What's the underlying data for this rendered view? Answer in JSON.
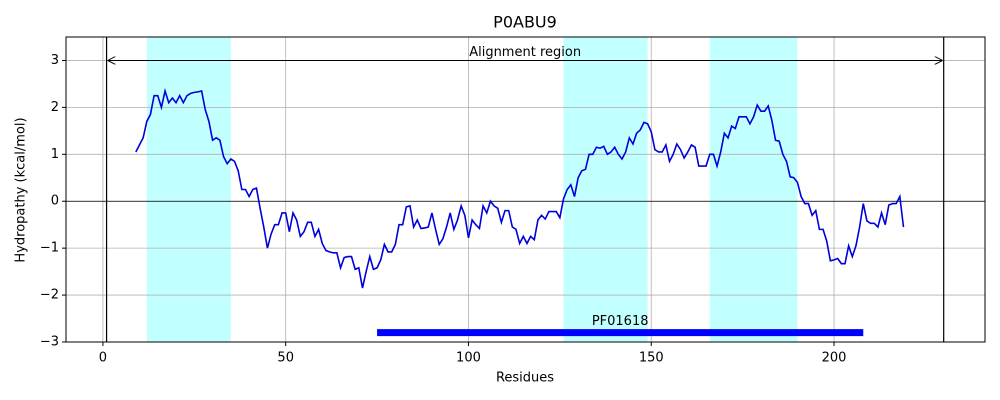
{
  "chart_data": {
    "type": "line",
    "title": "P0ABU9",
    "xlabel": "Residues",
    "ylabel": "Hydropathy (kcal/mol)",
    "xlim": [
      -10.1,
      241.3
    ],
    "ylim": [
      -3,
      3.5
    ],
    "xticks": [
      0,
      50,
      100,
      150,
      200
    ],
    "yticks": [
      {
        "value": -3,
        "label": "−3"
      },
      {
        "value": -2,
        "label": "−2"
      },
      {
        "value": -1,
        "label": "−1"
      },
      0,
      1,
      2,
      3
    ],
    "grid": true,
    "hline": 0,
    "shaded_regions": [
      {
        "start": 12,
        "end": 35
      },
      {
        "start": 126,
        "end": 149
      },
      {
        "start": 166,
        "end": 190
      }
    ],
    "shade_color": "#c2ffff",
    "alignment_region": {
      "label": "Alignment region",
      "start": 1,
      "end": 230,
      "y": 3
    },
    "domain": {
      "name": "PF01618",
      "start": 75,
      "end": 208,
      "y": -2.8,
      "color": "#0000ff"
    },
    "series": [
      {
        "color": "#0000dd",
        "x": [
          9,
          10,
          11,
          12,
          13,
          14,
          15,
          16,
          17,
          18,
          19,
          20,
          21,
          22,
          23,
          24,
          25,
          26,
          27,
          28,
          29,
          30,
          31,
          32,
          33,
          34,
          35,
          36,
          37,
          38,
          39,
          40,
          41,
          42,
          43,
          44,
          45,
          46,
          47,
          48,
          49,
          50,
          51,
          52,
          53,
          54,
          55,
          56,
          57,
          58,
          59,
          60,
          61,
          62,
          63,
          64,
          65,
          66,
          67,
          68,
          69,
          70,
          71,
          72,
          73,
          74,
          75,
          76,
          77,
          78,
          79,
          80,
          81,
          82,
          83,
          84,
          85,
          86,
          87,
          88,
          89,
          90,
          91,
          92,
          93,
          94,
          95,
          96,
          97,
          98,
          99,
          100,
          101,
          102,
          103,
          104,
          105,
          106,
          107,
          108,
          109,
          110,
          111,
          112,
          113,
          114,
          115,
          116,
          117,
          118,
          119,
          120,
          121,
          122,
          123,
          124,
          125,
          126,
          127,
          128,
          129,
          130,
          131,
          132,
          133,
          134,
          135,
          136,
          137,
          138,
          139,
          140,
          141,
          142,
          143,
          144,
          145,
          146,
          147,
          148,
          149,
          150,
          151,
          152,
          153,
          154,
          155,
          156,
          157,
          158,
          159,
          160,
          161,
          162,
          163,
          164,
          165,
          166,
          167,
          168,
          169,
          170,
          171,
          172,
          173,
          174,
          175,
          176,
          177,
          178,
          179,
          180,
          181,
          182,
          183,
          184,
          185,
          186,
          187,
          188,
          189,
          190,
          191,
          192,
          193,
          194,
          195,
          196,
          197,
          198,
          199,
          200,
          201,
          202,
          203,
          204,
          205,
          206,
          207,
          208,
          209,
          210,
          211,
          212,
          213,
          214,
          215,
          216,
          217,
          218,
          219
        ],
        "values": [
          1.05,
          1.2,
          1.35,
          1.7,
          1.85,
          2.25,
          2.25,
          2.0,
          2.35,
          2.1,
          2.2,
          2.1,
          2.25,
          2.1,
          2.25,
          2.3,
          2.32,
          2.33,
          2.35,
          1.95,
          1.7,
          1.3,
          1.35,
          1.3,
          0.95,
          0.8,
          0.9,
          0.85,
          0.65,
          0.25,
          0.25,
          0.1,
          0.25,
          0.28,
          -0.15,
          -0.55,
          -1.0,
          -0.7,
          -0.5,
          -0.5,
          -0.25,
          -0.25,
          -0.65,
          -0.25,
          -0.4,
          -0.75,
          -0.65,
          -0.45,
          -0.45,
          -0.75,
          -0.6,
          -0.9,
          -1.05,
          -1.08,
          -1.1,
          -1.1,
          -1.42,
          -1.2,
          -1.18,
          -1.18,
          -1.45,
          -1.42,
          -1.85,
          -1.5,
          -1.18,
          -1.45,
          -1.42,
          -1.25,
          -0.92,
          -1.08,
          -1.08,
          -0.92,
          -0.5,
          -0.5,
          -0.12,
          -0.1,
          -0.55,
          -0.4,
          -0.58,
          -0.57,
          -0.55,
          -0.25,
          -0.6,
          -0.92,
          -0.8,
          -0.55,
          -0.25,
          -0.6,
          -0.4,
          -0.1,
          -0.3,
          -0.78,
          -0.4,
          -0.5,
          -0.58,
          -0.1,
          -0.25,
          0.0,
          -0.1,
          -0.15,
          -0.45,
          -0.2,
          -0.2,
          -0.55,
          -0.6,
          -0.9,
          -0.75,
          -0.9,
          -0.75,
          -0.82,
          -0.4,
          -0.3,
          -0.38,
          -0.22,
          -0.22,
          -0.22,
          -0.35,
          0.05,
          0.25,
          0.35,
          0.1,
          0.5,
          0.65,
          0.68,
          1.0,
          1.0,
          1.15,
          1.13,
          1.17,
          1.0,
          1.05,
          1.15,
          1.0,
          0.9,
          1.05,
          1.35,
          1.22,
          1.45,
          1.52,
          1.68,
          1.65,
          1.48,
          1.1,
          1.05,
          1.05,
          1.2,
          0.85,
          1.0,
          1.22,
          1.1,
          0.92,
          1.05,
          1.2,
          1.15,
          0.75,
          0.75,
          0.75,
          1.0,
          1.0,
          0.75,
          1.05,
          1.45,
          1.35,
          1.6,
          1.55,
          1.8,
          1.8,
          1.8,
          1.65,
          1.8,
          2.05,
          1.92,
          1.92,
          2.03,
          1.72,
          1.3,
          1.28,
          1.0,
          0.85,
          0.52,
          0.5,
          0.4,
          0.1,
          -0.05,
          -0.05,
          -0.3,
          -0.2,
          -0.6,
          -0.6,
          -0.85,
          -1.27,
          -1.25,
          -1.22,
          -1.33,
          -1.33,
          -0.95,
          -1.18,
          -0.95,
          -0.55,
          -0.05,
          -0.42,
          -0.47,
          -0.47,
          -0.55,
          -0.25,
          -0.5,
          -0.08,
          -0.05,
          -0.05,
          0.1,
          -0.55
        ]
      }
    ]
  }
}
